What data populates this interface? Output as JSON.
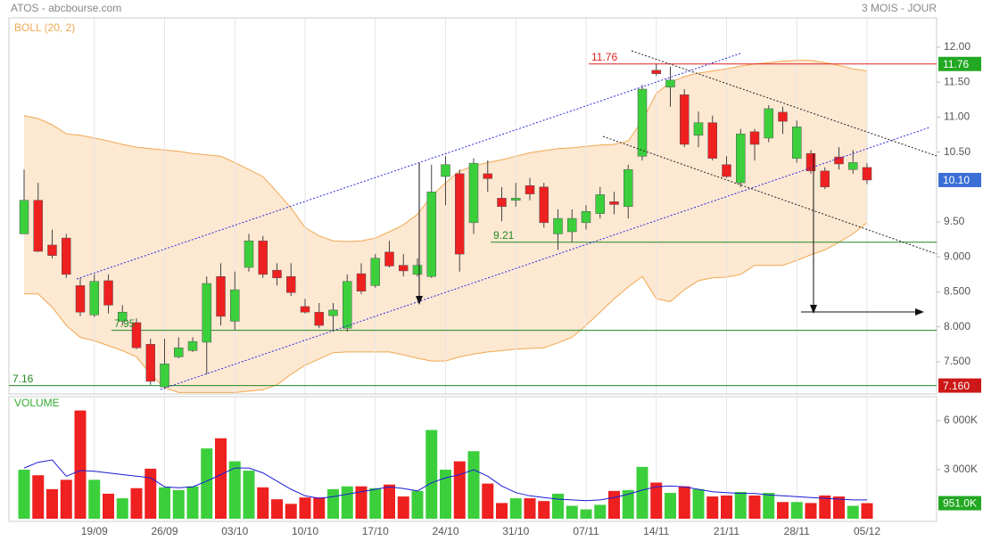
{
  "chart_data": [
    {
      "type": "candlestick",
      "title": "ATOS - abcbourse.com",
      "subtitle": "3 MOIS - JOUR",
      "open": [
        9.33,
        9.81,
        9.17,
        9.27,
        8.59,
        8.17,
        8.66,
        8.08,
        8.06,
        7.75,
        7.14,
        7.57,
        7.66,
        7.78,
        8.72,
        8.08,
        8.85,
        9.23,
        8.81,
        8.72,
        8.29,
        8.21,
        8.16,
        7.98,
        8.76,
        8.59,
        9.07,
        8.88,
        8.75,
        8.72,
        10.15,
        10.19,
        9.49,
        10.19,
        9.84,
        9.81,
        10.02,
        10.0,
        9.33,
        9.36,
        9.49,
        9.62,
        9.79,
        9.72,
        10.44,
        11.67,
        11.43,
        11.32,
        10.74,
        10.92,
        10.32,
        10.06,
        10.79,
        10.7,
        11.07,
        10.41,
        10.48,
        10.23,
        10.43,
        10.25,
        10.28
      ],
      "high": [
        10.25,
        10.06,
        9.39,
        9.33,
        8.7,
        8.75,
        8.75,
        8.31,
        8.12,
        7.83,
        7.83,
        7.85,
        7.85,
        8.72,
        8.91,
        8.79,
        9.33,
        9.3,
        8.91,
        8.91,
        8.4,
        8.34,
        8.34,
        8.75,
        8.91,
        9.04,
        9.23,
        9.04,
        8.98,
        10.32,
        10.44,
        10.25,
        10.41,
        10.38,
        10.0,
        10.06,
        10.13,
        10.06,
        9.68,
        9.68,
        9.74,
        10.0,
        9.93,
        10.32,
        11.46,
        11.76,
        11.72,
        11.4,
        11.08,
        11.02,
        10.44,
        10.83,
        10.83,
        11.17,
        11.15,
        10.95,
        10.53,
        10.28,
        10.57,
        10.53,
        10.34
      ],
      "low": [
        9.33,
        9.07,
        8.98,
        8.7,
        8.15,
        8.14,
        8.19,
        8.02,
        7.68,
        7.17,
        7.11,
        7.55,
        7.64,
        7.32,
        8.02,
        7.96,
        8.79,
        8.7,
        8.59,
        8.44,
        8.19,
        7.98,
        7.93,
        7.93,
        8.47,
        8.56,
        8.85,
        8.72,
        8.72,
        8.7,
        9.74,
        8.79,
        9.33,
        9.93,
        9.51,
        9.72,
        9.81,
        9.42,
        9.1,
        9.21,
        9.39,
        9.55,
        9.61,
        9.55,
        10.38,
        11.59,
        11.15,
        10.57,
        10.57,
        10.38,
        10.13,
        10.0,
        10.38,
        10.64,
        10.76,
        10.35,
        10.19,
        9.97,
        10.25,
        10.19,
        10.04
      ],
      "close": [
        9.81,
        9.08,
        9.02,
        8.75,
        8.21,
        8.65,
        8.31,
        8.21,
        7.7,
        7.22,
        7.47,
        7.7,
        7.79,
        8.62,
        8.15,
        8.53,
        9.23,
        8.75,
        8.7,
        8.49,
        8.21,
        8.02,
        8.24,
        8.65,
        8.51,
        8.98,
        8.87,
        8.8,
        8.88,
        9.93,
        10.32,
        9.04,
        10.34,
        10.12,
        9.72,
        9.84,
        9.9,
        9.49,
        9.55,
        9.55,
        9.65,
        9.89,
        9.75,
        10.25,
        11.4,
        11.62,
        11.53,
        10.61,
        10.92,
        10.41,
        10.15,
        10.76,
        10.61,
        11.12,
        10.94,
        10.86,
        10.23,
        10.0,
        10.33,
        10.35,
        10.1
      ],
      "colors": {
        "up": "#3ccf3c",
        "down": "#ee2020"
      },
      "indicator": {
        "label": "BOLL (20, 2)",
        "color": "#f0a850",
        "fill": "#fde8d2",
        "upper": [
          11.02,
          10.98,
          10.89,
          10.76,
          10.74,
          10.7,
          10.66,
          10.61,
          10.57,
          10.55,
          10.53,
          10.51,
          10.48,
          10.46,
          10.44,
          10.35,
          10.25,
          10.15,
          9.93,
          9.7,
          9.42,
          9.3,
          9.23,
          9.22,
          9.23,
          9.27,
          9.36,
          9.46,
          9.61,
          9.87,
          10.06,
          10.23,
          10.3,
          10.35,
          10.39,
          10.44,
          10.49,
          10.52,
          10.55,
          10.56,
          10.58,
          10.6,
          10.61,
          10.66,
          10.95,
          11.34,
          11.5,
          11.58,
          11.63,
          11.66,
          11.69,
          11.73,
          11.76,
          11.78,
          11.8,
          11.81,
          11.81,
          11.78,
          11.74,
          11.69,
          11.66
        ],
        "lower": [
          8.47,
          8.47,
          8.28,
          8.02,
          7.85,
          7.8,
          7.73,
          7.66,
          7.57,
          7.32,
          7.13,
          7.06,
          7.06,
          7.06,
          7.06,
          7.06,
          7.08,
          7.1,
          7.17,
          7.32,
          7.45,
          7.54,
          7.63,
          7.64,
          7.64,
          7.64,
          7.64,
          7.6,
          7.55,
          7.51,
          7.51,
          7.57,
          7.61,
          7.64,
          7.66,
          7.68,
          7.69,
          7.7,
          7.77,
          7.85,
          8.02,
          8.21,
          8.4,
          8.57,
          8.72,
          8.4,
          8.36,
          8.53,
          8.66,
          8.7,
          8.71,
          8.75,
          8.88,
          8.88,
          8.88,
          8.95,
          9.03,
          9.1,
          9.21,
          9.33,
          9.49
        ]
      },
      "levels": [
        {
          "value": 11.76,
          "label": "11.76",
          "color": "#dd2222"
        },
        {
          "value": 9.21,
          "label": "9.21",
          "color": "#228822"
        },
        {
          "value": 7.95,
          "label": "7.95",
          "color": "#228822"
        },
        {
          "value": 7.16,
          "label": "7.16",
          "color": "#228822"
        }
      ],
      "tags": [
        {
          "value": 11.76,
          "label": "11.76",
          "color": "#22a822"
        },
        {
          "value": 10.1,
          "label": "10.10",
          "color": "#3b6fd6"
        },
        {
          "value": 7.16,
          "label": "7.160",
          "color": "#cc1818"
        }
      ],
      "ylim": [
        7.04,
        12.42
      ],
      "yticks": [
        {
          "value": 12,
          "label": "12.00"
        },
        {
          "value": 11.5,
          "label": "11.50"
        },
        {
          "value": 11,
          "label": "11.00"
        },
        {
          "value": 10.5,
          "label": "10.50"
        },
        {
          "value": 9.5,
          "label": "9.50"
        },
        {
          "value": 9,
          "label": "9.000"
        },
        {
          "value": 8.5,
          "label": "8.500"
        },
        {
          "value": 8,
          "label": "8.000"
        },
        {
          "value": 7.5,
          "label": "7.500"
        }
      ]
    },
    {
      "type": "bar",
      "title": "VOLUME",
      "categories": [
        null,
        null,
        null,
        null,
        null,
        "19/09",
        null,
        null,
        null,
        null,
        "26/09",
        null,
        null,
        null,
        null,
        "03/10",
        null,
        null,
        null,
        null,
        "10/10",
        null,
        null,
        null,
        null,
        "17/10",
        null,
        null,
        null,
        null,
        "24/10",
        null,
        null,
        null,
        null,
        "31/10",
        null,
        null,
        null,
        null,
        "07/11",
        null,
        null,
        null,
        null,
        "14/11",
        null,
        null,
        null,
        null,
        "21/11",
        null,
        null,
        null,
        null,
        "28/11",
        null,
        null,
        null,
        null,
        "05/12"
      ],
      "values": [
        3000,
        2660,
        1810,
        2380,
        6620,
        2380,
        1530,
        1250,
        1870,
        3060,
        1920,
        1750,
        1980,
        4300,
        4920,
        3510,
        2940,
        1920,
        1190,
        910,
        1300,
        1300,
        1810,
        1980,
        1980,
        1870,
        2090,
        1360,
        1700,
        5430,
        3000,
        3510,
        4130,
        2150,
        960,
        1250,
        1250,
        1080,
        1530,
        790,
        570,
        850,
        1700,
        1750,
        3170,
        2210,
        1580,
        1980,
        1810,
        1360,
        1420,
        1640,
        1420,
        1580,
        1020,
        1020,
        960,
        1420,
        1360,
        790,
        951
      ],
      "average": {
        "color": "#1a1ad8",
        "values": [
          3100,
          3450,
          3600,
          2600,
          2950,
          2900,
          2800,
          2700,
          2600,
          2500,
          1950,
          1900,
          1950,
          2300,
          2700,
          3100,
          3100,
          2800,
          2300,
          1800,
          1400,
          1250,
          1350,
          1500,
          1650,
          1800,
          1950,
          1850,
          1700,
          2200,
          2500,
          2700,
          3000,
          2600,
          2000,
          1600,
          1400,
          1300,
          1200,
          1150,
          1100,
          1150,
          1300,
          1500,
          1750,
          1950,
          2000,
          1950,
          1800,
          1650,
          1600,
          1550,
          1550,
          1450,
          1400,
          1350,
          1300,
          1250,
          1200,
          1150,
          1150
        ]
      },
      "tag": {
        "value": 951,
        "label": "951.0K",
        "color": "#22a822"
      },
      "ylim": [
        0,
        7470
      ],
      "yticks": [
        {
          "value": 6000,
          "label": "6 000K"
        },
        {
          "value": 3000,
          "label": "3 000K"
        }
      ],
      "grid": true
    }
  ]
}
